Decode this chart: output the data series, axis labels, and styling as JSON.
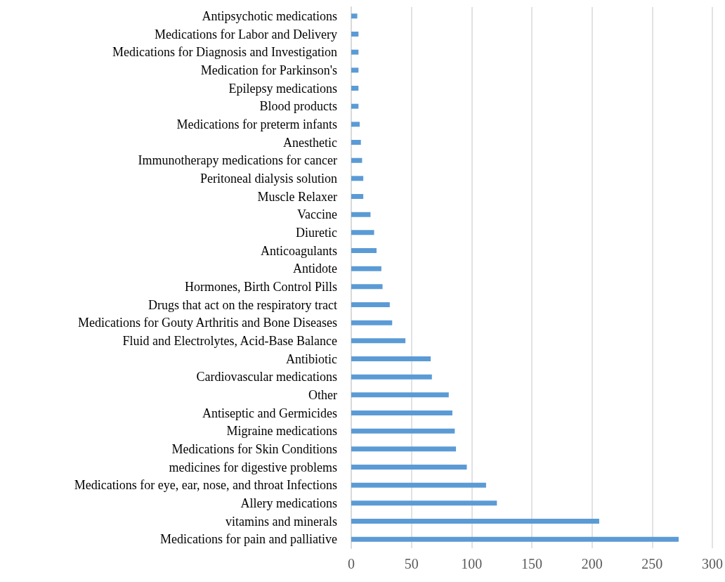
{
  "chart_data": {
    "type": "bar",
    "orientation": "horizontal",
    "color": "#5b9bd5",
    "grid": "x",
    "xlim": [
      0,
      300
    ],
    "xticks": [
      0,
      50,
      100,
      150,
      200,
      250,
      300
    ],
    "categories": [
      "Antipsychotic medications",
      "Medications for Labor and Delivery",
      "Medications for Diagnosis and Investigation",
      "Medication for Parkinson's",
      "Epilepsy medications",
      "Blood products",
      "Medications for preterm infants",
      "Anesthetic",
      "Immunotherapy medications for cancer",
      "Peritoneal dialysis solution",
      "Muscle Relaxer",
      "Vaccine",
      "Diuretic",
      "Anticoagulants",
      "Antidote",
      "Hormones, Birth Control Pills",
      "Drugs that act on the respiratory tract",
      "Medications for Gouty Arthritis and Bone Diseases",
      "Fluid and Electrolytes, Acid-Base Balance",
      "Antibiotic",
      "Cardiovascular medications",
      "Other",
      "Antiseptic and Germicides",
      "Migraine medications",
      "Medications for Skin Conditions",
      "medicines for digestive problems",
      "Medications for eye, ear, nose, and throat Infections",
      "Allery medications",
      "vitamins and minerals",
      "Medications for pain and palliative"
    ],
    "values": [
      5,
      6,
      6,
      6,
      6,
      6,
      7,
      8,
      9,
      10,
      10,
      16,
      19,
      21,
      25,
      26,
      32,
      34,
      45,
      66,
      67,
      81,
      84,
      86,
      87,
      96,
      112,
      121,
      206,
      272
    ]
  }
}
